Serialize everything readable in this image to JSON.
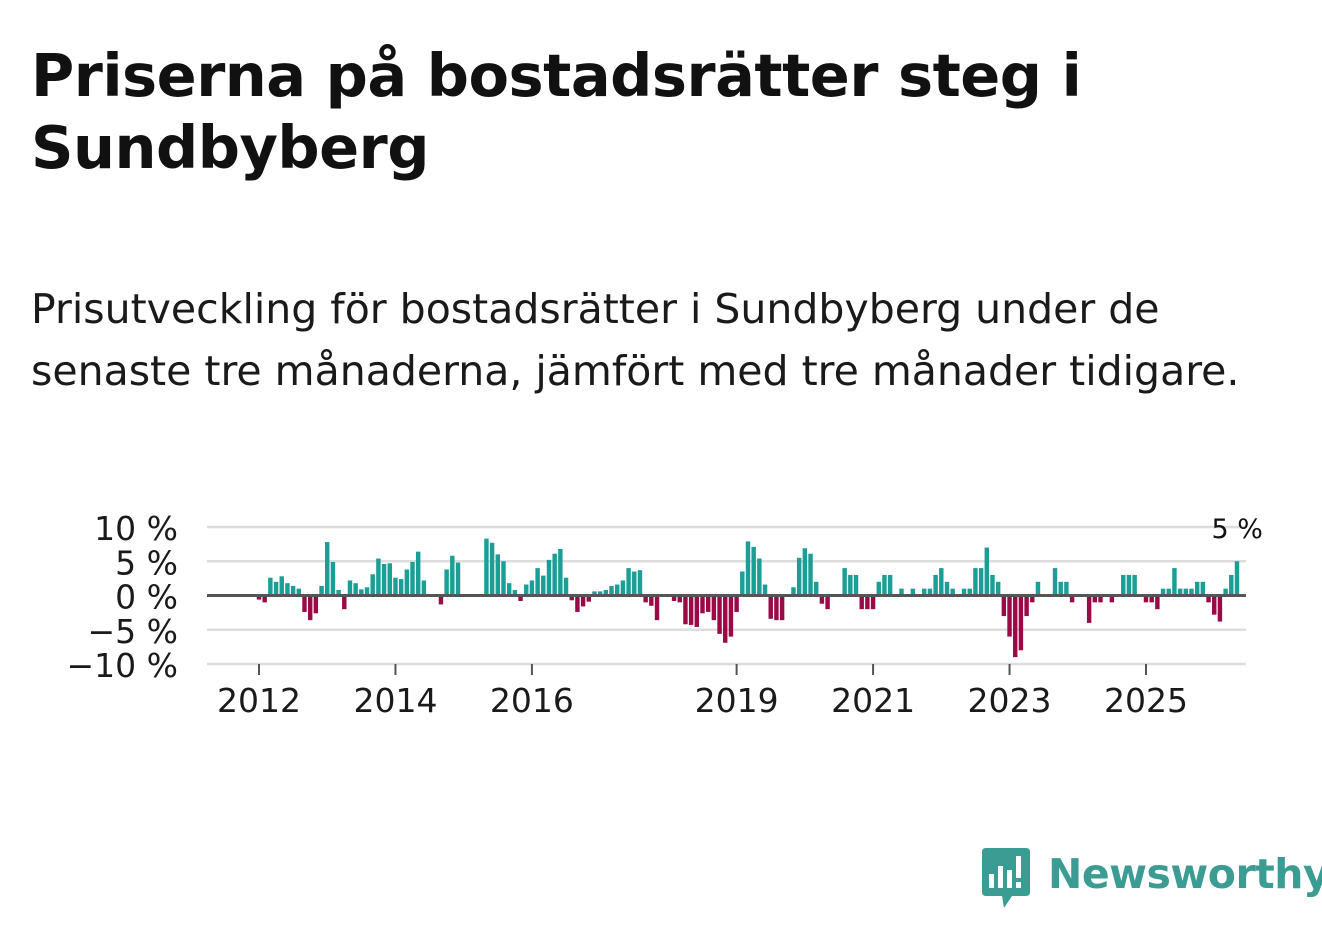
{
  "header": {
    "title": "Priserna på bostadsrätter steg i Sundbyberg",
    "subtitle": "Prisutveckling för bostadsrätter i Sundbyberg under de senaste tre månaderna, jämfört med tre månader tidigare."
  },
  "brand": {
    "name": "Newsworthy"
  },
  "colors": {
    "positive": "#1a9e95",
    "negative": "#9b0a46",
    "grid": "#dddddd",
    "zero": "#555555",
    "text": "#1a1a1a",
    "brand": "#3b9c94"
  },
  "chart_data": {
    "type": "bar",
    "title": "Priserna på bostadsrätter steg i Sundbyberg",
    "xlabel": "",
    "ylabel": "",
    "unit": "%",
    "ylim": [
      -10,
      10
    ],
    "y_ticks": [
      {
        "value": 10,
        "label": "10 %"
      },
      {
        "value": 5,
        "label": "5 %"
      },
      {
        "value": 0,
        "label": "0 %"
      },
      {
        "value": -5,
        "label": "−5 %"
      },
      {
        "value": -10,
        "label": "−10 %"
      }
    ],
    "x_ticks": [
      {
        "value": 2012,
        "label": "2012"
      },
      {
        "value": 2014,
        "label": "2014"
      },
      {
        "value": 2016,
        "label": "2016"
      },
      {
        "value": 2019,
        "label": "2019"
      },
      {
        "value": 2021,
        "label": "2021"
      },
      {
        "value": 2023,
        "label": "2023"
      },
      {
        "value": 2025,
        "label": "2025"
      }
    ],
    "x_start": 2012,
    "x_end_year": 2025.75,
    "period": "monthly",
    "series": [
      {
        "name": "Prisutveckling",
        "start": 2012.0,
        "values": [
          -0.6,
          -1.0,
          2.6,
          2.0,
          2.8,
          1.8,
          1.4,
          1.0,
          -2.4,
          -3.6,
          -2.6,
          1.4,
          7.8,
          4.9,
          0.8,
          -2.0,
          2.2,
          1.8,
          0.9,
          1.2,
          3.1,
          5.4,
          4.6,
          4.7,
          2.6,
          2.4,
          3.8,
          4.9,
          6.4,
          2.2,
          0.0,
          0.0,
          -1.3,
          3.8,
          5.8,
          4.8,
          0.0,
          0.0,
          0.0,
          0.0,
          8.3,
          7.7,
          6.0,
          5.0,
          1.8,
          0.8,
          -0.8,
          1.6,
          2.2,
          4.0,
          2.9,
          5.2,
          6.1,
          6.8,
          2.6,
          -0.7,
          -2.4,
          -1.6,
          -0.9,
          0.6,
          0.6,
          0.8,
          1.4,
          1.6,
          2.2,
          4.0,
          3.5,
          3.7,
          -1.0,
          -1.5,
          -3.6,
          0.0,
          0.0,
          -0.8,
          -1.0,
          -4.2,
          -4.3,
          -4.6,
          -2.6,
          -2.4,
          -3.6,
          -5.6,
          -6.9,
          -6.0,
          -2.4,
          3.5,
          7.9,
          7.1,
          5.4,
          1.6,
          -3.4,
          -3.6,
          -3.6,
          0.0,
          1.2,
          5.5,
          6.9,
          6.1,
          2.0,
          -1.2,
          -2.0,
          0.0,
          0.0,
          4.0,
          3.0,
          3.0,
          -2.0,
          -2.0,
          -2.0,
          2.0,
          3.0,
          3.0,
          0.0,
          1.0,
          0.0,
          1.0,
          0.0,
          1.0,
          1.0,
          3.0,
          4.0,
          2.0,
          1.0,
          0.0,
          1.0,
          1.0,
          4.0,
          4.0,
          7.0,
          3.0,
          2.0,
          -3.0,
          -6.0,
          -9.0,
          -8.0,
          -3.0,
          -1.0,
          2.0,
          0.0,
          0.0,
          4.0,
          2.0,
          2.0,
          -1.0,
          0.0,
          0.0,
          -4.0,
          -1.0,
          -1.0,
          0.0,
          -1.0,
          0.0,
          3.0,
          3.0,
          3.0,
          0.0,
          -1.0,
          -1.0,
          -2.0,
          1.0,
          1.0,
          4.0,
          1.0,
          1.0,
          1.0,
          2.0,
          2.0,
          -1.0,
          -2.8,
          -3.8,
          1.0,
          3.0,
          5.0
        ]
      }
    ],
    "annotation": {
      "label": "5 %",
      "value": 5
    }
  }
}
